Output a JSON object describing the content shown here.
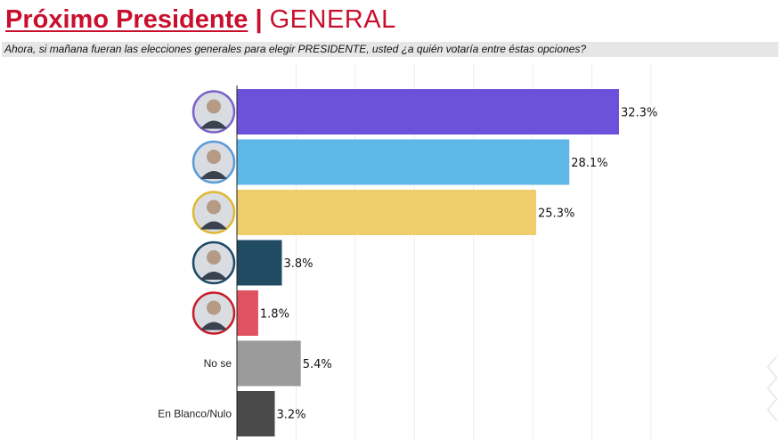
{
  "header": {
    "title": "Próximo Presidente",
    "separator": "|",
    "scope": "GENERAL",
    "question": "Ahora, si mañana fueran las elecciones generales para elegir PRESIDENTE, usted ¿a quién votaría entre éstas opciones?"
  },
  "chart_data": {
    "type": "bar",
    "orientation": "horizontal",
    "categories": [
      "",
      "",
      "",
      "",
      "",
      "No se",
      "En Blanco/Nulo"
    ],
    "values": [
      32.3,
      28.1,
      25.3,
      3.8,
      1.8,
      5.4,
      3.2
    ],
    "value_labels": [
      "32.3%",
      "28.1%",
      "25.3%",
      "3.8%",
      "1.8%",
      "5.4%",
      "3.2%"
    ],
    "colors": [
      "#6c52db",
      "#5fb7e8",
      "#efcd6b",
      "#214a63",
      "#e0525f",
      "#9b9b9b",
      "#4a4a4a"
    ],
    "avatar_rings": [
      "#7a62c9",
      "#5a9bd8",
      "#e0b830",
      "#1e4a66",
      "#c81e2a",
      null,
      null
    ],
    "xlim": [
      0,
      35
    ],
    "grid": true
  }
}
